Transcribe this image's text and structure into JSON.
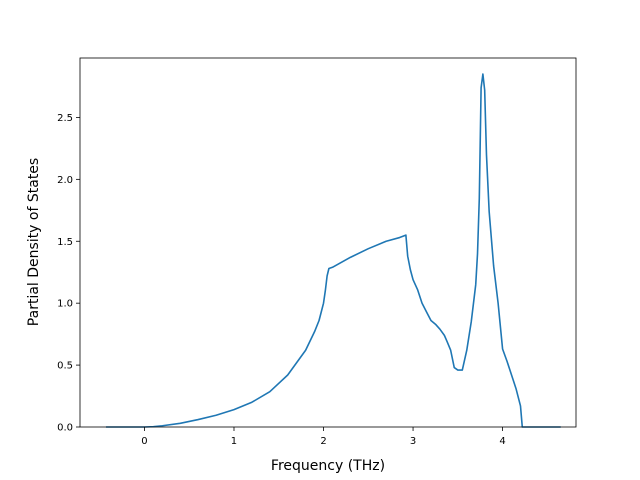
{
  "chart_data": {
    "type": "line",
    "title": "",
    "xlabel": "Frequency (THz)",
    "ylabel": "Partial Density of States",
    "xlim": [
      -0.72,
      4.82
    ],
    "ylim": [
      0.0,
      2.98
    ],
    "xticks": [
      0,
      1,
      2,
      3,
      4
    ],
    "xtick_labels": [
      "0",
      "1",
      "2",
      "3",
      "4"
    ],
    "yticks": [
      0.0,
      0.5,
      1.0,
      1.5,
      2.0,
      2.5
    ],
    "ytick_labels": [
      "0.0",
      "0.5",
      "1.0",
      "1.5",
      "2.0",
      "2.5"
    ],
    "grid": false,
    "legend": "none",
    "series": [
      {
        "color": "#1f77b4",
        "x": [
          -0.43,
          -0.2,
          0.0,
          0.1,
          0.2,
          0.4,
          0.6,
          0.8,
          1.0,
          1.2,
          1.4,
          1.6,
          1.8,
          1.9,
          1.95,
          2.0,
          2.02,
          2.04,
          2.06,
          2.1,
          2.3,
          2.5,
          2.7,
          2.85,
          2.92,
          2.94,
          2.97,
          3.0,
          3.05,
          3.1,
          3.15,
          3.2,
          3.25,
          3.3,
          3.35,
          3.38,
          3.42,
          3.46,
          3.5,
          3.55,
          3.6,
          3.65,
          3.7,
          3.72,
          3.74,
          3.76,
          3.78,
          3.8,
          3.82,
          3.85,
          3.9,
          3.95,
          4.0,
          4.05,
          4.1,
          4.15,
          4.2,
          4.22,
          4.3,
          4.5,
          4.65
        ],
        "y": [
          0.0,
          0.0,
          0.0,
          0.003,
          0.01,
          0.03,
          0.06,
          0.095,
          0.14,
          0.2,
          0.285,
          0.42,
          0.62,
          0.77,
          0.86,
          1.0,
          1.1,
          1.22,
          1.28,
          1.29,
          1.37,
          1.44,
          1.5,
          1.53,
          1.55,
          1.38,
          1.27,
          1.19,
          1.11,
          1.0,
          0.93,
          0.86,
          0.83,
          0.79,
          0.74,
          0.69,
          0.62,
          0.48,
          0.46,
          0.46,
          0.62,
          0.85,
          1.15,
          1.4,
          1.85,
          2.74,
          2.85,
          2.72,
          2.2,
          1.74,
          1.3,
          1.0,
          0.63,
          0.53,
          0.42,
          0.31,
          0.17,
          0.0,
          0.0,
          0.0,
          0.0
        ]
      }
    ]
  }
}
